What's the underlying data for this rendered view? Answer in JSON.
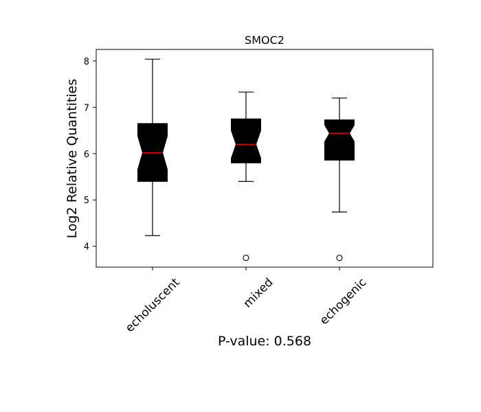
{
  "chart_data": {
    "type": "boxplot",
    "title": "SMOC2",
    "ylabel": "Log2 Relative Quantities",
    "xlabel": "P-value: 0.568",
    "categories": [
      "echoluscent",
      "mixed",
      "echogenic"
    ],
    "ylim": [
      3.55,
      8.25
    ],
    "yticks": [
      4,
      5,
      6,
      7,
      8
    ],
    "notched": true,
    "grid": false,
    "box_color": "#000000",
    "median_color": "#ff0000",
    "boxes": [
      {
        "name": "echoluscent",
        "whisker_low": 4.23,
        "q1": 5.4,
        "median": 6.02,
        "q3": 6.65,
        "whisker_high": 8.04,
        "notch_low": 5.66,
        "notch_high": 6.38,
        "outliers": []
      },
      {
        "name": "mixed",
        "whisker_low": 5.4,
        "q1": 5.8,
        "median": 6.2,
        "q3": 6.75,
        "whisker_high": 7.33,
        "notch_low": 5.9,
        "notch_high": 6.5,
        "outliers": [
          3.75
        ]
      },
      {
        "name": "echogenic",
        "whisker_low": 4.74,
        "q1": 5.86,
        "median": 6.44,
        "q3": 6.73,
        "whisker_high": 7.2,
        "notch_low": 6.26,
        "notch_high": 6.62,
        "outliers": [
          3.75
        ]
      }
    ]
  }
}
